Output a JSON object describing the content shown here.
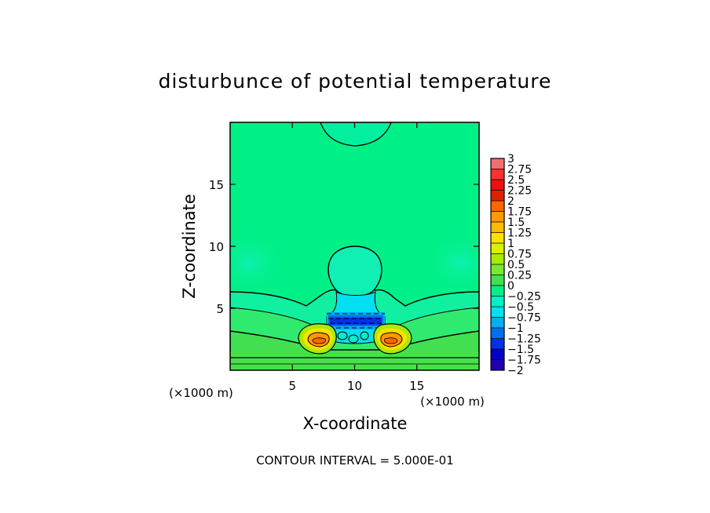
{
  "chart_data": {
    "type": "heatmap",
    "title": "disturbunce of potential temperature",
    "xlabel": "X-coordinate",
    "ylabel": "Z-coordinate",
    "x_unit": "(×1000 m)",
    "y_unit": "(×1000 m)",
    "xlim": [
      0,
      20
    ],
    "ylim": [
      0,
      20
    ],
    "x_ticks": [
      5,
      10,
      15
    ],
    "y_ticks": [
      5,
      10,
      15
    ],
    "footer": "CONTOUR INTERVAL = 5.000E-01",
    "contour_interval": 0.5,
    "colorbar": {
      "levels": [
        "3",
        "2.75",
        "2.5",
        "2.25",
        "2",
        "1.75",
        "1.5",
        "1.25",
        "1",
        "0.75",
        "0.5",
        "0.25",
        "0",
        "−0.25",
        "−0.5",
        "−0.75",
        "−1",
        "−1.25",
        "−1.5",
        "−1.75",
        "−2"
      ],
      "colors": [
        "#f07070",
        "#ff3030",
        "#ee1010",
        "#dd2200",
        "#ff6600",
        "#ff9900",
        "#ffbb00",
        "#ffe000",
        "#d8f000",
        "#a8ec00",
        "#78e830",
        "#40e050",
        "#00f088",
        "#00f0c8",
        "#00e0f0",
        "#00b0f0",
        "#0070f0",
        "#0030e8",
        "#0000c8",
        "#2000b0",
        "#5000a0"
      ]
    },
    "background_level": "0",
    "features": [
      {
        "kind": "warm_dome",
        "center": [
          10,
          8.2
        ],
        "level": "0.25"
      },
      {
        "kind": "warm_plume_top",
        "center": [
          10,
          19
        ],
        "level": "0.25"
      },
      {
        "kind": "cold_core",
        "center": [
          10,
          4
        ],
        "level": "−1.25"
      },
      {
        "kind": "warm_lobe",
        "center": [
          7.5,
          2.5
        ],
        "level": "1.75"
      },
      {
        "kind": "warm_lobe",
        "center": [
          12.5,
          2.5
        ],
        "level": "1.75"
      }
    ]
  }
}
